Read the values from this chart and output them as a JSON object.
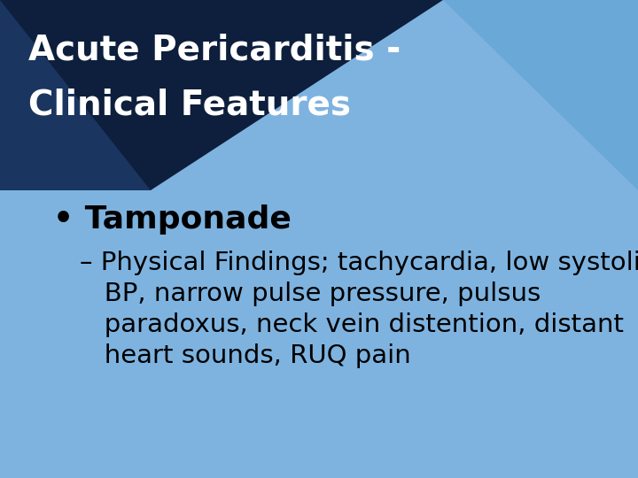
{
  "bg_color": "#7EB3E0",
  "dark_navy": "#0D1F3C",
  "dark_navy2": "#1A3560",
  "light_blue_tri": "#6AA8D8",
  "title_line1": "Acute Pericarditis -",
  "title_line2": "Clinical Features",
  "title_color": "#FFFFFF",
  "bullet_text": "Tamponade",
  "bullet_color": "#000000",
  "sub_text_line1": "– Physical Findings; tachycardia, low systolic",
  "sub_text_line2": "   BP, narrow pulse pressure, pulsus",
  "sub_text_line3": "   paradoxus, neck vein distention, distant",
  "sub_text_line4": "   heart sounds, RUQ pain",
  "sub_color": "#000000",
  "title_fontsize": 28,
  "bullet_fontsize": 26,
  "sub_fontsize": 21
}
